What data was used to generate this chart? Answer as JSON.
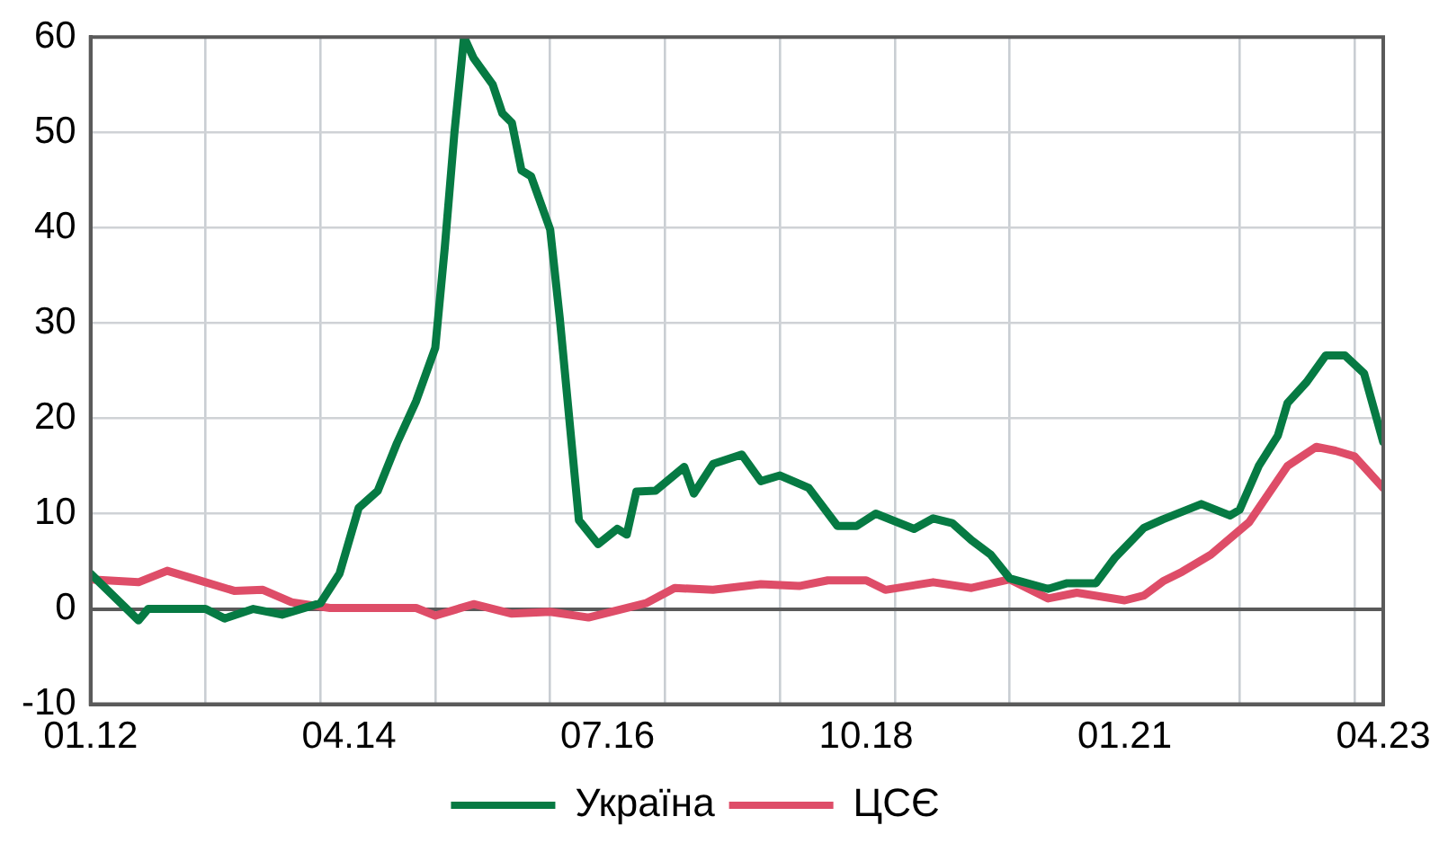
{
  "chart_data": {
    "type": "line",
    "xlim": [
      "2012-01",
      "2023-04"
    ],
    "ylim": [
      -10,
      60
    ],
    "yticks": [
      -10,
      0,
      10,
      20,
      30,
      40,
      50,
      60
    ],
    "xticks": [
      {
        "value": "2012-01",
        "label": "01.12"
      },
      {
        "value": "2013-01",
        "label": null
      },
      {
        "value": "2014-01",
        "label": null
      },
      {
        "value": "2014-04",
        "label": "04.14"
      },
      {
        "value": "2015-01",
        "label": null
      },
      {
        "value": "2016-01",
        "label": null
      },
      {
        "value": "2016-07",
        "label": "07.16"
      },
      {
        "value": "2017-01",
        "label": null
      },
      {
        "value": "2018-01",
        "label": null
      },
      {
        "value": "2018-10",
        "label": "10.18"
      },
      {
        "value": "2019-01",
        "label": null
      },
      {
        "value": "2020-01",
        "label": null
      },
      {
        "value": "2021-01",
        "label": "01.21"
      },
      {
        "value": "2022-01",
        "label": null
      },
      {
        "value": "2023-01",
        "label": null
      },
      {
        "value": "2023-04",
        "label": "04.23"
      }
    ],
    "grid": true,
    "legend": "bottom",
    "marker": "none",
    "line_style": "solid",
    "series": [
      {
        "name": "Україна",
        "color": "#067a43",
        "x": [
          "2012-01",
          "2012-06",
          "2012-07",
          "2013-01",
          "2013-03",
          "2013-06",
          "2013-09",
          "2014-01",
          "2014-03",
          "2014-05",
          "2014-07",
          "2014-09",
          "2014-11",
          "2015-01",
          "2015-02",
          "2015-03",
          "2015-04",
          "2015-05",
          "2015-07",
          "2015-08",
          "2015-09",
          "2015-10",
          "2015-11",
          "2016-01",
          "2016-02",
          "2016-04",
          "2016-06",
          "2016-08",
          "2016-09",
          "2016-10",
          "2016-12",
          "2017-03",
          "2017-04",
          "2017-06",
          "2017-09",
          "2017-11",
          "2018-01",
          "2018-04",
          "2018-07",
          "2018-09",
          "2018-11",
          "2019-03",
          "2019-05",
          "2019-07",
          "2019-09",
          "2019-11",
          "2020-01",
          "2020-05",
          "2020-07",
          "2020-10",
          "2020-12",
          "2021-03",
          "2021-05",
          "2021-07",
          "2021-09",
          "2021-12",
          "2022-01",
          "2022-03",
          "2022-05",
          "2022-06",
          "2022-08",
          "2022-10",
          "2022-12",
          "2023-02",
          "2023-04"
        ],
        "values": [
          3.7,
          -1.2,
          0,
          0,
          -1,
          0,
          -0.6,
          0.6,
          3.7,
          10.6,
          12.4,
          17.4,
          21.8,
          27.4,
          38,
          50,
          60,
          57.8,
          55,
          52,
          51,
          46,
          45.4,
          39.8,
          30.5,
          9.3,
          6.8,
          8.4,
          7.8,
          12.3,
          12.4,
          14.9,
          12.1,
          15.2,
          16.2,
          13.4,
          14,
          12.7,
          8.7,
          8.7,
          10,
          8.4,
          9.5,
          9,
          7.2,
          5.7,
          3.2,
          2.1,
          2.7,
          2.7,
          5.4,
          8.5,
          9.4,
          10.2,
          11,
          9.8,
          10.4,
          15,
          18.2,
          21.6,
          23.8,
          26.6,
          26.6,
          24.7,
          17.5
        ]
      },
      {
        "name": "ЦСЄ",
        "color": "#de4d68",
        "x": [
          "2012-01",
          "2012-06",
          "2012-09",
          "2012-12",
          "2013-04",
          "2013-07",
          "2013-10",
          "2014-02",
          "2014-11",
          "2015-01",
          "2015-05",
          "2015-09",
          "2016-01",
          "2016-05",
          "2016-11",
          "2017-02",
          "2017-06",
          "2017-11",
          "2018-03",
          "2018-06",
          "2018-10",
          "2018-12",
          "2019-05",
          "2019-09",
          "2020-01",
          "2020-05",
          "2020-08",
          "2021-01",
          "2021-03",
          "2021-05",
          "2021-07",
          "2021-10",
          "2022-02",
          "2022-06",
          "2022-09",
          "2022-11",
          "2023-01",
          "2023-04"
        ],
        "values": [
          3.1,
          2.8,
          4,
          3.1,
          1.9,
          2,
          0.7,
          0.1,
          0.1,
          -0.7,
          0.5,
          -0.5,
          -0.3,
          -0.9,
          0.6,
          2.2,
          2,
          2.6,
          2.4,
          3,
          3,
          2,
          2.8,
          2.2,
          3.1,
          1.1,
          1.7,
          0.9,
          1.4,
          2.9,
          3.9,
          5.7,
          9.1,
          15,
          17,
          16.6,
          16,
          12.7
        ]
      }
    ]
  }
}
